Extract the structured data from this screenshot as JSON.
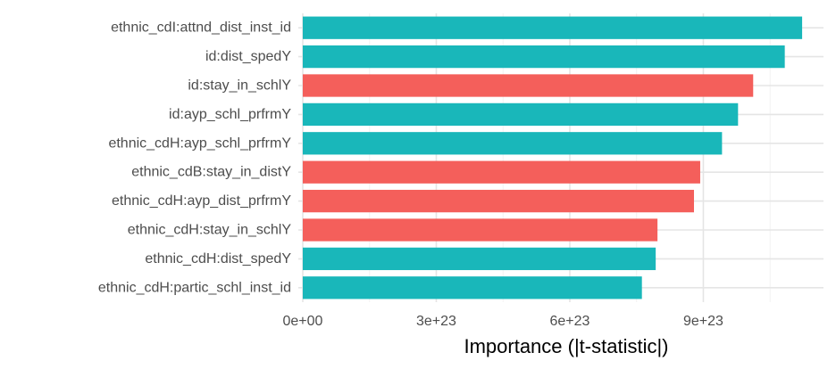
{
  "chart_data": {
    "type": "bar",
    "orientation": "horizontal",
    "title": "",
    "xlabel": "Importance (|t-statistic|)",
    "ylabel": "",
    "xlim": [
      -1e+22,
      1.17e+24
    ],
    "x_ticks": [
      0,
      3e+23,
      6e+23,
      9e+23
    ],
    "x_tick_labels": [
      "0e+00",
      "3e+23",
      "6e+23",
      "9e+23"
    ],
    "grid": true,
    "legend": "none",
    "colors": {
      "positive": "#19B7BA",
      "negative": "#F45F5B"
    },
    "categories": [
      "ethnic_cdI:attnd_dist_inst_id",
      "id:dist_spedY",
      "id:stay_in_schlY",
      "id:ayp_schl_prfrmY",
      "ethnic_cdH:ayp_schl_prfrmY",
      "ethnic_cdB:stay_in_distY",
      "ethnic_cdH:ayp_dist_prfrmY",
      "ethnic_cdH:stay_in_schlY",
      "ethnic_cdH:dist_spedY",
      "ethnic_cdH:partic_schl_inst_id"
    ],
    "values": [
      1.122e+24,
      1.083e+24,
      1.012e+24,
      9.78e+23,
      9.42e+23,
      8.93e+23,
      8.79e+23,
      7.97e+23,
      7.93e+23,
      7.62e+23
    ],
    "sign": [
      "positive",
      "positive",
      "negative",
      "positive",
      "positive",
      "negative",
      "negative",
      "negative",
      "positive",
      "positive"
    ]
  }
}
